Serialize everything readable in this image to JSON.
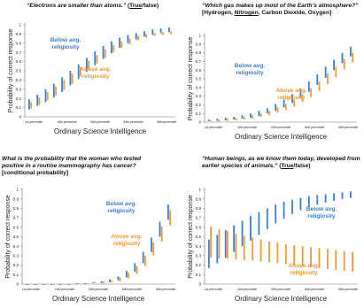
{
  "colors": {
    "below": "#3b7fd6",
    "above": "#f29a35",
    "axis": "#777777"
  },
  "chart_data": [
    {
      "type": "scatter",
      "title_q": "“Electrons are smaller than atoms.”",
      "title_opts": [
        {
          "text": " (",
          "u": false
        },
        {
          "text": "True",
          "u": true
        },
        {
          "text": "/false)",
          "u": false
        }
      ],
      "title2_opts": [],
      "ylabel": "Probability of correct response",
      "xlabel": "Ordinary Science Intelligence",
      "ylim": [
        0,
        1
      ],
      "yticks": [
        0,
        0.1,
        0.2,
        0.3,
        0.4,
        0.5,
        0.6,
        0.7,
        0.8,
        0.9,
        1
      ],
      "x_ticks": [
        "1st percentile",
        "16th percentile",
        "50th percentile",
        "84th percentile",
        "99th percentile"
      ],
      "below_label": [
        "Below avg.",
        "religiosity"
      ],
      "above_label": [
        "Above avg.",
        "religiosity"
      ],
      "series": [
        {
          "name": "Below avg. religiosity",
          "values": [
            [
              0.08,
              0.19
            ],
            [
              0.12,
              0.24
            ],
            [
              0.16,
              0.3
            ],
            [
              0.21,
              0.36
            ],
            [
              0.27,
              0.43
            ],
            [
              0.34,
              0.5
            ],
            [
              0.41,
              0.57
            ],
            [
              0.49,
              0.64
            ],
            [
              0.56,
              0.71
            ],
            [
              0.63,
              0.77
            ],
            [
              0.69,
              0.82
            ],
            [
              0.75,
              0.86
            ],
            [
              0.8,
              0.89
            ],
            [
              0.84,
              0.91
            ],
            [
              0.87,
              0.93
            ],
            [
              0.89,
              0.95
            ],
            [
              0.91,
              0.96
            ],
            [
              0.92,
              0.97
            ]
          ]
        },
        {
          "name": "Above avg. religiosity",
          "values": [
            [
              0.09,
              0.16
            ],
            [
              0.13,
              0.21
            ],
            [
              0.18,
              0.27
            ],
            [
              0.23,
              0.33
            ],
            [
              0.29,
              0.4
            ],
            [
              0.36,
              0.47
            ],
            [
              0.44,
              0.54
            ],
            [
              0.51,
              0.61
            ],
            [
              0.58,
              0.67
            ],
            [
              0.64,
              0.73
            ],
            [
              0.7,
              0.78
            ],
            [
              0.75,
              0.82
            ],
            [
              0.79,
              0.85
            ],
            [
              0.83,
              0.88
            ],
            [
              0.86,
              0.9
            ],
            [
              0.88,
              0.91
            ],
            [
              0.89,
              0.92
            ],
            [
              0.9,
              0.93
            ]
          ]
        }
      ]
    },
    {
      "type": "scatter",
      "title_q": "“Which gas makes up most of the Earth’s atmosphere?”",
      "title_opts": [],
      "title2_opts": [
        {
          "text": "[Hydrogen, ",
          "u": false
        },
        {
          "text": "Nitrogen",
          "u": true
        },
        {
          "text": ", Carbon Dioxide, Oxygen]",
          "u": false
        }
      ],
      "ylabel": "Probability of correct response",
      "xlabel": "Ordinary Science Intelligence",
      "ylim": [
        0,
        1
      ],
      "yticks": [
        0,
        0.1,
        0.2,
        0.3,
        0.4,
        0.5,
        0.6,
        0.7,
        0.8,
        0.9,
        1
      ],
      "x_ticks": [
        "1st percentile",
        "16th percentile",
        "50th percentile",
        "84th percentile",
        "99th percentile"
      ],
      "below_label": [
        "Below avg.",
        "religiosity"
      ],
      "above_label": [
        "Above avg.",
        "religiosity"
      ],
      "series": [
        {
          "name": "Below avg. religiosity",
          "values": [
            [
              0.01,
              0.03
            ],
            [
              0.015,
              0.04
            ],
            [
              0.02,
              0.05
            ],
            [
              0.03,
              0.06
            ],
            [
              0.04,
              0.08
            ],
            [
              0.05,
              0.1
            ],
            [
              0.07,
              0.13
            ],
            [
              0.1,
              0.16
            ],
            [
              0.13,
              0.21
            ],
            [
              0.17,
              0.26
            ],
            [
              0.22,
              0.32
            ],
            [
              0.28,
              0.39
            ],
            [
              0.35,
              0.47
            ],
            [
              0.43,
              0.55
            ],
            [
              0.51,
              0.64
            ],
            [
              0.6,
              0.72
            ],
            [
              0.68,
              0.8
            ],
            [
              0.76,
              0.87
            ]
          ]
        },
        {
          "name": "Above avg. religiosity",
          "values": [
            [
              0.01,
              0.02
            ],
            [
              0.01,
              0.03
            ],
            [
              0.015,
              0.04
            ],
            [
              0.02,
              0.05
            ],
            [
              0.03,
              0.06
            ],
            [
              0.04,
              0.08
            ],
            [
              0.06,
              0.1
            ],
            [
              0.08,
              0.13
            ],
            [
              0.11,
              0.17
            ],
            [
              0.14,
              0.21
            ],
            [
              0.18,
              0.26
            ],
            [
              0.23,
              0.32
            ],
            [
              0.29,
              0.39
            ],
            [
              0.36,
              0.47
            ],
            [
              0.44,
              0.56
            ],
            [
              0.52,
              0.64
            ],
            [
              0.61,
              0.73
            ],
            [
              0.69,
              0.8
            ]
          ]
        }
      ]
    },
    {
      "type": "scatter",
      "title_q": "What is the probability that the woman who tested positive in a routine mammography has cancer?",
      "title_opts": [],
      "title2_opts": [
        {
          "text": "[conditional probability]",
          "u": false
        }
      ],
      "ylabel": "Probability of correct response",
      "xlabel": "Ordinary Science Intelligence",
      "ylim": [
        0,
        1
      ],
      "yticks": [
        0,
        0.1,
        0.2,
        0.3,
        0.4,
        0.5,
        0.6,
        0.7,
        0.8,
        0.9,
        1
      ],
      "x_ticks": [
        "1st percentile",
        "16th percentile",
        "50th percentile",
        "84th percentile",
        "99th percentile"
      ],
      "below_label": [
        "Below avg.",
        "religiosity"
      ],
      "above_label": [
        "Above avg.",
        "religiosity"
      ],
      "series": [
        {
          "name": "Below avg. religiosity",
          "values": [
            [
              0.0,
              0.0
            ],
            [
              0.0,
              0.0
            ],
            [
              0.0,
              0.0
            ],
            [
              0.0,
              0.0
            ],
            [
              0.0,
              0.0
            ],
            [
              0.0,
              0.0
            ],
            [
              0.0,
              0.01
            ],
            [
              0.0,
              0.01
            ],
            [
              0.01,
              0.02
            ],
            [
              0.01,
              0.03
            ],
            [
              0.02,
              0.05
            ],
            [
              0.04,
              0.08
            ],
            [
              0.07,
              0.14
            ],
            [
              0.13,
              0.22
            ],
            [
              0.22,
              0.34
            ],
            [
              0.34,
              0.49
            ],
            [
              0.5,
              0.66
            ],
            [
              0.68,
              0.84
            ]
          ]
        },
        {
          "name": "Above avg. religiosity",
          "values": [
            [
              0.0,
              0.0
            ],
            [
              0.0,
              0.0
            ],
            [
              0.0,
              0.0
            ],
            [
              0.0,
              0.0
            ],
            [
              0.0,
              0.0
            ],
            [
              0.0,
              0.0
            ],
            [
              0.0,
              0.01
            ],
            [
              0.0,
              0.01
            ],
            [
              0.01,
              0.02
            ],
            [
              0.01,
              0.03
            ],
            [
              0.02,
              0.04
            ],
            [
              0.03,
              0.07
            ],
            [
              0.06,
              0.12
            ],
            [
              0.11,
              0.19
            ],
            [
              0.19,
              0.3
            ],
            [
              0.3,
              0.44
            ],
            [
              0.45,
              0.61
            ],
            [
              0.62,
              0.78
            ]
          ]
        }
      ]
    },
    {
      "type": "scatter",
      "title_q": "“Human beings, as we know them today, developed from earlier species of animals.”",
      "title_opts": [
        {
          "text": " (",
          "u": false
        },
        {
          "text": "True",
          "u": true
        },
        {
          "text": "/false)",
          "u": false
        }
      ],
      "title2_opts": [],
      "ylabel": "Probability of correct response",
      "xlabel": "Ordinary Science Intelligence",
      "ylim": [
        0,
        1
      ],
      "yticks": [
        0,
        0.1,
        0.2,
        0.3,
        0.4,
        0.5,
        0.6,
        0.7,
        0.8,
        0.9,
        1
      ],
      "x_ticks": [
        "1st percentile",
        "16th percentile",
        "50th percentile",
        "84th percentile",
        "99th percentile"
      ],
      "below_label": [
        "Below avg.",
        "religiosity"
      ],
      "above_label": [
        "Above avg.",
        "religiosity"
      ],
      "series": [
        {
          "name": "Below avg. religiosity",
          "values": [
            [
              0.17,
              0.47
            ],
            [
              0.22,
              0.52
            ],
            [
              0.28,
              0.57
            ],
            [
              0.34,
              0.62
            ],
            [
              0.4,
              0.67
            ],
            [
              0.46,
              0.72
            ],
            [
              0.52,
              0.76
            ],
            [
              0.58,
              0.8
            ],
            [
              0.64,
              0.84
            ],
            [
              0.69,
              0.87
            ],
            [
              0.74,
              0.89
            ],
            [
              0.78,
              0.91
            ],
            [
              0.81,
              0.93
            ],
            [
              0.84,
              0.94
            ],
            [
              0.86,
              0.95
            ],
            [
              0.88,
              0.96
            ],
            [
              0.9,
              0.97
            ],
            [
              0.91,
              0.98
            ]
          ]
        },
        {
          "name": "Above avg. religiosity",
          "values": [
            [
              0.28,
              0.61
            ],
            [
              0.27,
              0.58
            ],
            [
              0.27,
              0.56
            ],
            [
              0.26,
              0.53
            ],
            [
              0.25,
              0.51
            ],
            [
              0.25,
              0.49
            ],
            [
              0.24,
              0.47
            ],
            [
              0.23,
              0.45
            ],
            [
              0.22,
              0.44
            ],
            [
              0.21,
              0.42
            ],
            [
              0.2,
              0.41
            ],
            [
              0.19,
              0.4
            ],
            [
              0.18,
              0.39
            ],
            [
              0.17,
              0.38
            ],
            [
              0.16,
              0.37
            ],
            [
              0.15,
              0.36
            ],
            [
              0.14,
              0.35
            ],
            [
              0.13,
              0.34
            ]
          ]
        }
      ]
    }
  ]
}
